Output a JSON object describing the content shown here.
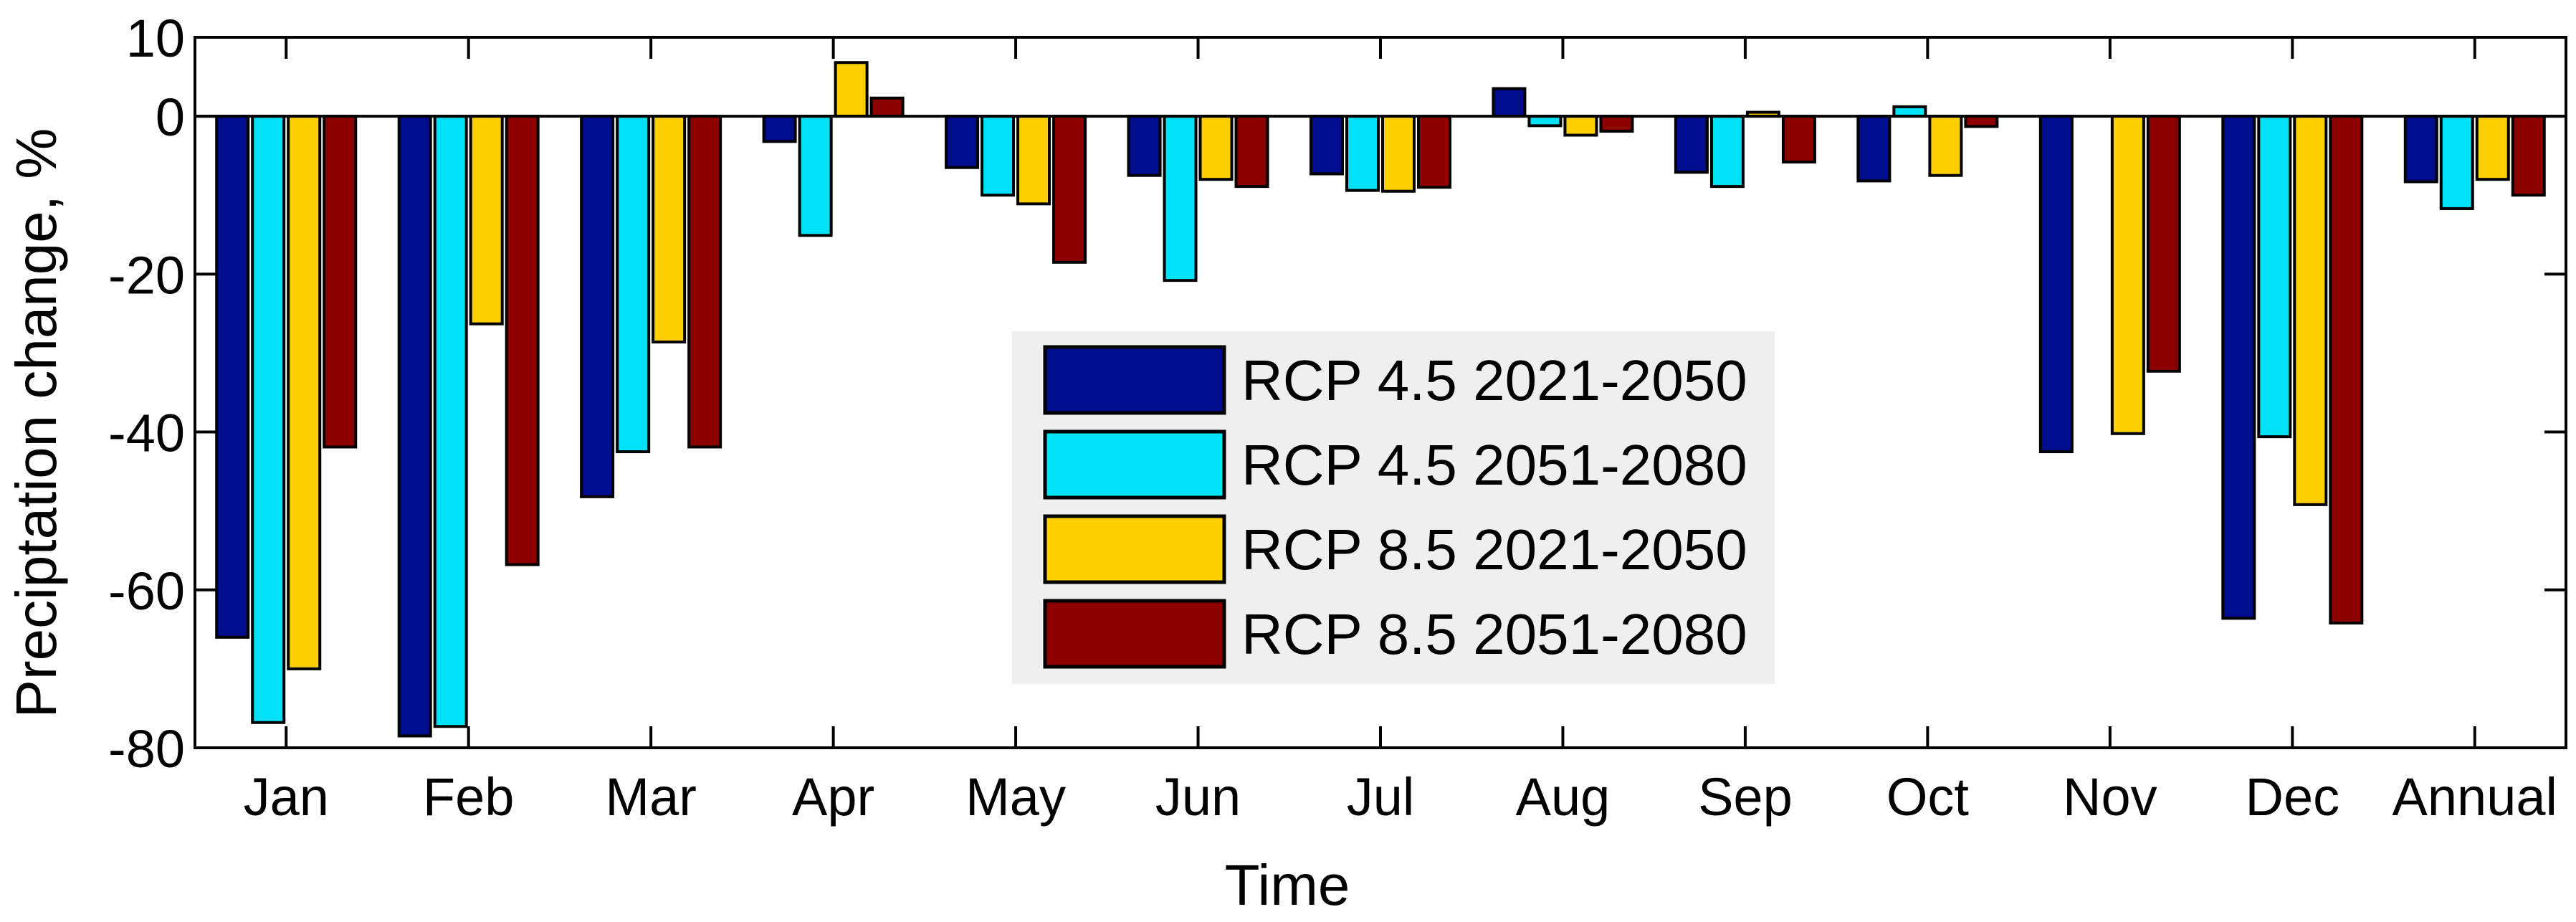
{
  "chart_data": {
    "type": "bar",
    "xlabel": "Time",
    "ylabel": "Preciptation change, %",
    "ylim": [
      -80,
      10
    ],
    "yticks": [
      10,
      0,
      -20,
      -40,
      -60,
      -80
    ],
    "grid": false,
    "legend_position": "center",
    "categories": [
      "Jan",
      "Feb",
      "Mar",
      "Apr",
      "May",
      "Jun",
      "Jul",
      "Aug",
      "Sep",
      "Oct",
      "Nov",
      "Dec",
      "Annual"
    ],
    "series": [
      {
        "name": "RCP 4.5 2021-2050",
        "color": "#000d8c",
        "values": [
          -66,
          -78.5,
          -48.2,
          -3.2,
          -6.5,
          -7.5,
          -7.3,
          3.5,
          -7.1,
          -8.2,
          -42.5,
          -63.6,
          -8.3
        ]
      },
      {
        "name": "RCP 4.5 2051-2080",
        "color": "#00e0f6",
        "values": [
          -76.8,
          -77.3,
          -42.5,
          -15.1,
          -10,
          -20.8,
          -9.4,
          -1.2,
          -8.9,
          1.2,
          0,
          -40.6,
          -11.7
        ]
      },
      {
        "name": "RCP 8.5 2021-2050",
        "color": "#ffd000",
        "values": [
          -70,
          -26.3,
          -28.6,
          6.8,
          -11.1,
          -8,
          -9.5,
          -2.4,
          0.5,
          -7.5,
          -40.2,
          -49.2,
          -8
        ]
      },
      {
        "name": "RCP 8.5 2051-2080",
        "color": "#8c0000",
        "values": [
          -41.9,
          -56.8,
          -41.9,
          2.3,
          -18.5,
          -8.9,
          -9,
          -1.9,
          -5.8,
          -1.3,
          -32.3,
          -64.2,
          -10
        ]
      }
    ]
  }
}
